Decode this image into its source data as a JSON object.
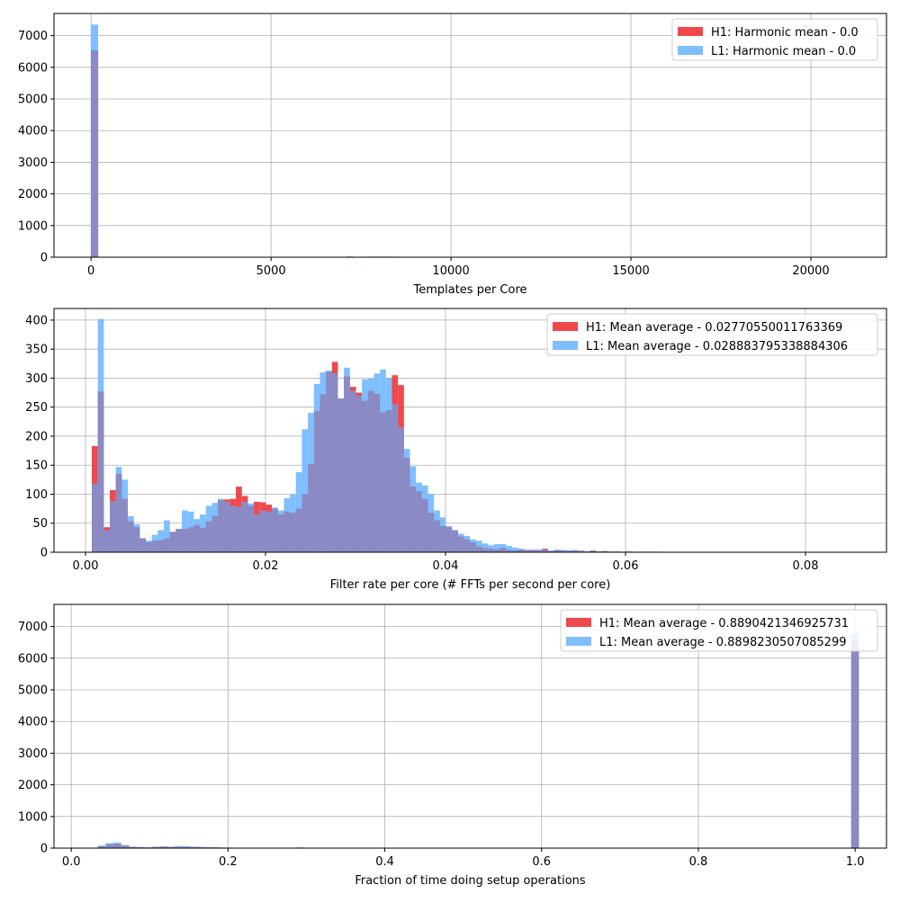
{
  "chart_data": [
    {
      "type": "bar",
      "xlabel": "Templates per Core",
      "ylabel": "",
      "xlim": [
        -1030,
        22100
      ],
      "ylim": [
        0,
        7700
      ],
      "xticks": [
        0,
        5000,
        10000,
        15000,
        20000
      ],
      "yticks": [
        0,
        1000,
        2000,
        3000,
        4000,
        5000,
        6000,
        7000
      ],
      "grid": true,
      "legend_position": "top-right",
      "bin_width": 197,
      "colors": {
        "H1": "#f0484b",
        "L1": "#7fbfff",
        "overlap": "#8a8ac4"
      },
      "series": [
        {
          "name": "H1: Harmonic mean  - 0.0",
          "color": "#f0484b",
          "x": [
            0,
            5515,
            5712,
            6697,
            7091,
            7288,
            7485,
            7879,
            8470
          ],
          "values": [
            6540,
            15,
            10,
            8,
            22,
            10,
            12,
            15,
            8
          ]
        },
        {
          "name": "L1: Harmonic mean  - 0.0",
          "color": "#7fbfff",
          "x": [
            0,
            6106,
            6303,
            6500,
            6697,
            6894,
            7485,
            7682,
            7879,
            8076,
            8273,
            8470,
            8667,
            8864,
            9258,
            9652,
            10046
          ],
          "values": [
            7350,
            5,
            8,
            10,
            12,
            10,
            18,
            22,
            20,
            22,
            20,
            18,
            15,
            12,
            10,
            8,
            5
          ]
        }
      ]
    },
    {
      "type": "bar",
      "xlabel": "Filter rate per core (# FFTs per second per core)",
      "ylabel": "",
      "xlim": [
        -0.0035,
        0.089
      ],
      "ylim": [
        0,
        420
      ],
      "xticks": [
        0.0,
        0.02,
        0.04,
        0.06,
        0.08
      ],
      "yticks": [
        0,
        50,
        100,
        150,
        200,
        250,
        300,
        350,
        400
      ],
      "grid": true,
      "legend_position": "top-right",
      "bin_width": 0.000667,
      "colors": {
        "H1": "#f0484b",
        "L1": "#7fbfff",
        "overlap": "#8a8ac4"
      },
      "series": [
        {
          "name": "H1: Mean average - 0.02770550011763369",
          "color": "#f0484b",
          "x0": 0.0007,
          "values": [
            183,
            277,
            43,
            107,
            135,
            92,
            53,
            43,
            24,
            17,
            20,
            21,
            24,
            35,
            40,
            40,
            43,
            47,
            42,
            53,
            63,
            90,
            91,
            92,
            113,
            97,
            80,
            87,
            86,
            82,
            75,
            65,
            70,
            68,
            75,
            100,
            152,
            243,
            272,
            311,
            328,
            265,
            303,
            285,
            275,
            261,
            278,
            273,
            241,
            245,
            305,
            288,
            163,
            113,
            105,
            92,
            68,
            55,
            45,
            43,
            38,
            27,
            22,
            17,
            10,
            7,
            6,
            5,
            8,
            4,
            3,
            5,
            3,
            4,
            3,
            6,
            2,
            4,
            3,
            3,
            3,
            2,
            1,
            3,
            1,
            2,
            1,
            1,
            0,
            0,
            0,
            0,
            0,
            0,
            0,
            0,
            0,
            0,
            0,
            0,
            0,
            0,
            0,
            0,
            0,
            0,
            0,
            0,
            0,
            0,
            0,
            0,
            0,
            0,
            0,
            0,
            0,
            0,
            0,
            0,
            0,
            0,
            0,
            0,
            0,
            0
          ]
        },
        {
          "name": "L1: Mean average - 0.028883795338884306",
          "color": "#7fbfff",
          "x0": 0.0007,
          "values": [
            118,
            402,
            38,
            88,
            147,
            125,
            62,
            48,
            23,
            20,
            30,
            38,
            55,
            35,
            40,
            72,
            70,
            57,
            65,
            80,
            85,
            92,
            87,
            80,
            78,
            87,
            84,
            65,
            72,
            70,
            77,
            72,
            93,
            100,
            138,
            212,
            240,
            290,
            310,
            313,
            308,
            265,
            318,
            278,
            270,
            298,
            299,
            308,
            315,
            300,
            255,
            215,
            178,
            148,
            120,
            115,
            100,
            72,
            60,
            45,
            38,
            32,
            28,
            22,
            20,
            15,
            12,
            14,
            14,
            11,
            8,
            6,
            5,
            4,
            5,
            4,
            3,
            4,
            4,
            3,
            4,
            3,
            2,
            2,
            2,
            1,
            1,
            1,
            1,
            2,
            1,
            1,
            1,
            1,
            1,
            0,
            0,
            0,
            0,
            0,
            0,
            0,
            0,
            0,
            0,
            0,
            0,
            0,
            0,
            0,
            0,
            0,
            0,
            0,
            0,
            0,
            0,
            0,
            0,
            0,
            0,
            0,
            0,
            0,
            0,
            0
          ]
        }
      ]
    },
    {
      "type": "bar",
      "xlabel": "Fraction of time doing setup operations",
      "ylabel": "",
      "xlim": [
        -0.022,
        1.04
      ],
      "ylim": [
        0,
        7700
      ],
      "xticks": [
        0.0,
        0.2,
        0.4,
        0.6,
        0.8,
        1.0
      ],
      "yticks": [
        0,
        1000,
        2000,
        3000,
        4000,
        5000,
        6000,
        7000
      ],
      "grid": true,
      "legend_position": "top-right",
      "bin_width": 0.0097,
      "colors": {
        "H1": "#f0484b",
        "L1": "#7fbfff",
        "overlap": "#8a8ac4"
      },
      "series": [
        {
          "name": "H1: Mean average - 0.8890421346925731",
          "color": "#f0484b",
          "x": [
            0.034,
            0.044,
            0.054,
            0.064,
            0.074,
            0.083,
            0.093,
            0.103,
            0.113,
            0.122,
            0.132,
            0.142,
            0.152,
            0.161,
            0.171,
            0.181,
            0.191,
            0.2,
            0.21,
            0.22,
            0.23,
            0.239,
            0.249,
            0.259,
            0.269,
            0.288,
            0.995
          ],
          "values": [
            60,
            120,
            140,
            80,
            40,
            30,
            20,
            45,
            50,
            40,
            35,
            45,
            40,
            30,
            25,
            20,
            15,
            12,
            10,
            8,
            8,
            6,
            5,
            5,
            4,
            20,
            6530
          ]
        },
        {
          "name": "L1: Mean average - 0.8898230507085299",
          "color": "#7fbfff",
          "x": [
            0.034,
            0.044,
            0.054,
            0.064,
            0.074,
            0.083,
            0.093,
            0.103,
            0.113,
            0.122,
            0.132,
            0.142,
            0.152,
            0.161,
            0.171,
            0.181,
            0.191,
            0.2,
            0.21,
            0.22,
            0.23,
            0.239,
            0.249,
            0.259,
            0.269,
            0.995
          ],
          "values": [
            80,
            160,
            180,
            100,
            45,
            35,
            25,
            40,
            45,
            45,
            70,
            55,
            40,
            40,
            35,
            25,
            20,
            15,
            12,
            10,
            8,
            6,
            5,
            5,
            4,
            6780
          ]
        }
      ]
    }
  ]
}
